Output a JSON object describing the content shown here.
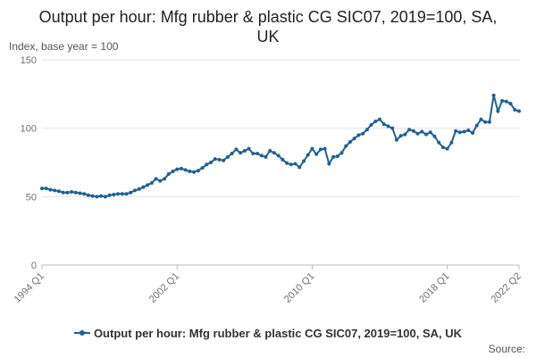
{
  "chart_data": {
    "type": "line",
    "title": "Output per hour: Mfg rubber & plastic CG SIC07, 2019=100, SA, UK",
    "y_label": "Index, base year = 100",
    "source": "Source:",
    "categories": [
      "1994 Q1",
      null,
      null,
      null,
      null,
      null,
      null,
      null,
      null,
      null,
      null,
      null,
      null,
      null,
      null,
      null,
      null,
      null,
      null,
      null,
      null,
      null,
      null,
      null,
      null,
      null,
      null,
      null,
      null,
      null,
      null,
      null,
      "2002 Q1",
      null,
      null,
      null,
      null,
      null,
      null,
      null,
      null,
      null,
      null,
      null,
      null,
      null,
      null,
      null,
      null,
      null,
      null,
      null,
      null,
      null,
      null,
      null,
      null,
      null,
      null,
      null,
      null,
      null,
      null,
      null,
      "2010 Q1",
      null,
      null,
      null,
      null,
      null,
      null,
      null,
      null,
      null,
      null,
      null,
      null,
      null,
      null,
      null,
      null,
      null,
      null,
      null,
      null,
      null,
      null,
      null,
      null,
      null,
      null,
      null,
      null,
      null,
      null,
      null,
      "2018 Q1",
      null,
      null,
      null,
      null,
      null,
      null,
      null,
      null,
      null,
      null,
      null,
      null,
      null,
      null,
      null,
      null,
      "2022 Q2"
    ],
    "series": [
      {
        "name": "Output per hour: Mfg rubber & plastic CG SIC07, 2019=100, SA, UK",
        "color": "#206095",
        "values": [
          56,
          56,
          55,
          54.5,
          54,
          53,
          53,
          53.5,
          53,
          52.5,
          52,
          51,
          50.5,
          50,
          50.5,
          50,
          51,
          51.5,
          52,
          52,
          52,
          53,
          54.5,
          55.5,
          57,
          58.5,
          60,
          63,
          61.5,
          63,
          66.5,
          68.5,
          70,
          70.5,
          69.5,
          68.5,
          68,
          69,
          71,
          73.5,
          75,
          77.5,
          77,
          76.5,
          79,
          81.5,
          84.5,
          82,
          83.5,
          85,
          81.5,
          81.5,
          80,
          79,
          83.5,
          82,
          80,
          77,
          74.5,
          73.5,
          74,
          71.5,
          76,
          80.5,
          85,
          81,
          84.5,
          85,
          74,
          79,
          79.5,
          82,
          87,
          90,
          92.5,
          95,
          96,
          99,
          102.5,
          105,
          106.5,
          103,
          101.5,
          100,
          91.5,
          94.5,
          95.5,
          99,
          98,
          96,
          97.5,
          95.5,
          97,
          94,
          89.5,
          86,
          85,
          89.5,
          98,
          97,
          97.5,
          98.5,
          96.5,
          102,
          106.5,
          104.5,
          104.5,
          124,
          112.5,
          120,
          119.5,
          118,
          113.5,
          112.5
        ]
      }
    ],
    "ylim": [
      0,
      150
    ],
    "yticks": [
      0,
      50,
      100,
      150
    ],
    "grid": true
  }
}
